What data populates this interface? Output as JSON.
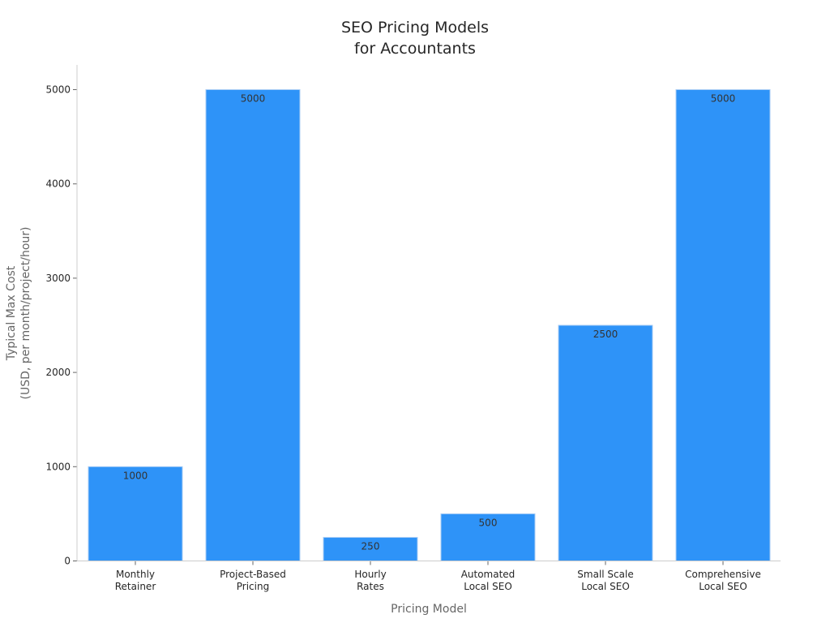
{
  "chart_data": {
    "type": "bar",
    "title": [
      "SEO Pricing Models",
      "for Accountants"
    ],
    "xlabel": "Pricing Model",
    "ylabel": [
      "Typical Max Cost",
      "(USD, per month/project/hour)"
    ],
    "categories": [
      [
        "Monthly",
        "Retainer"
      ],
      [
        "Project-Based",
        "Pricing"
      ],
      [
        "Hourly",
        "Rates"
      ],
      [
        "Automated",
        "Local SEO"
      ],
      [
        "Small Scale",
        "Local SEO"
      ],
      [
        "Comprehensive",
        "Local SEO"
      ]
    ],
    "values": [
      1000,
      5000,
      250,
      500,
      2500,
      5000
    ],
    "yticks": [
      0,
      1000,
      2000,
      3000,
      4000,
      5000
    ],
    "ylim": [
      0,
      5260
    ],
    "grid": false,
    "bar_color": "#2e93f8"
  }
}
